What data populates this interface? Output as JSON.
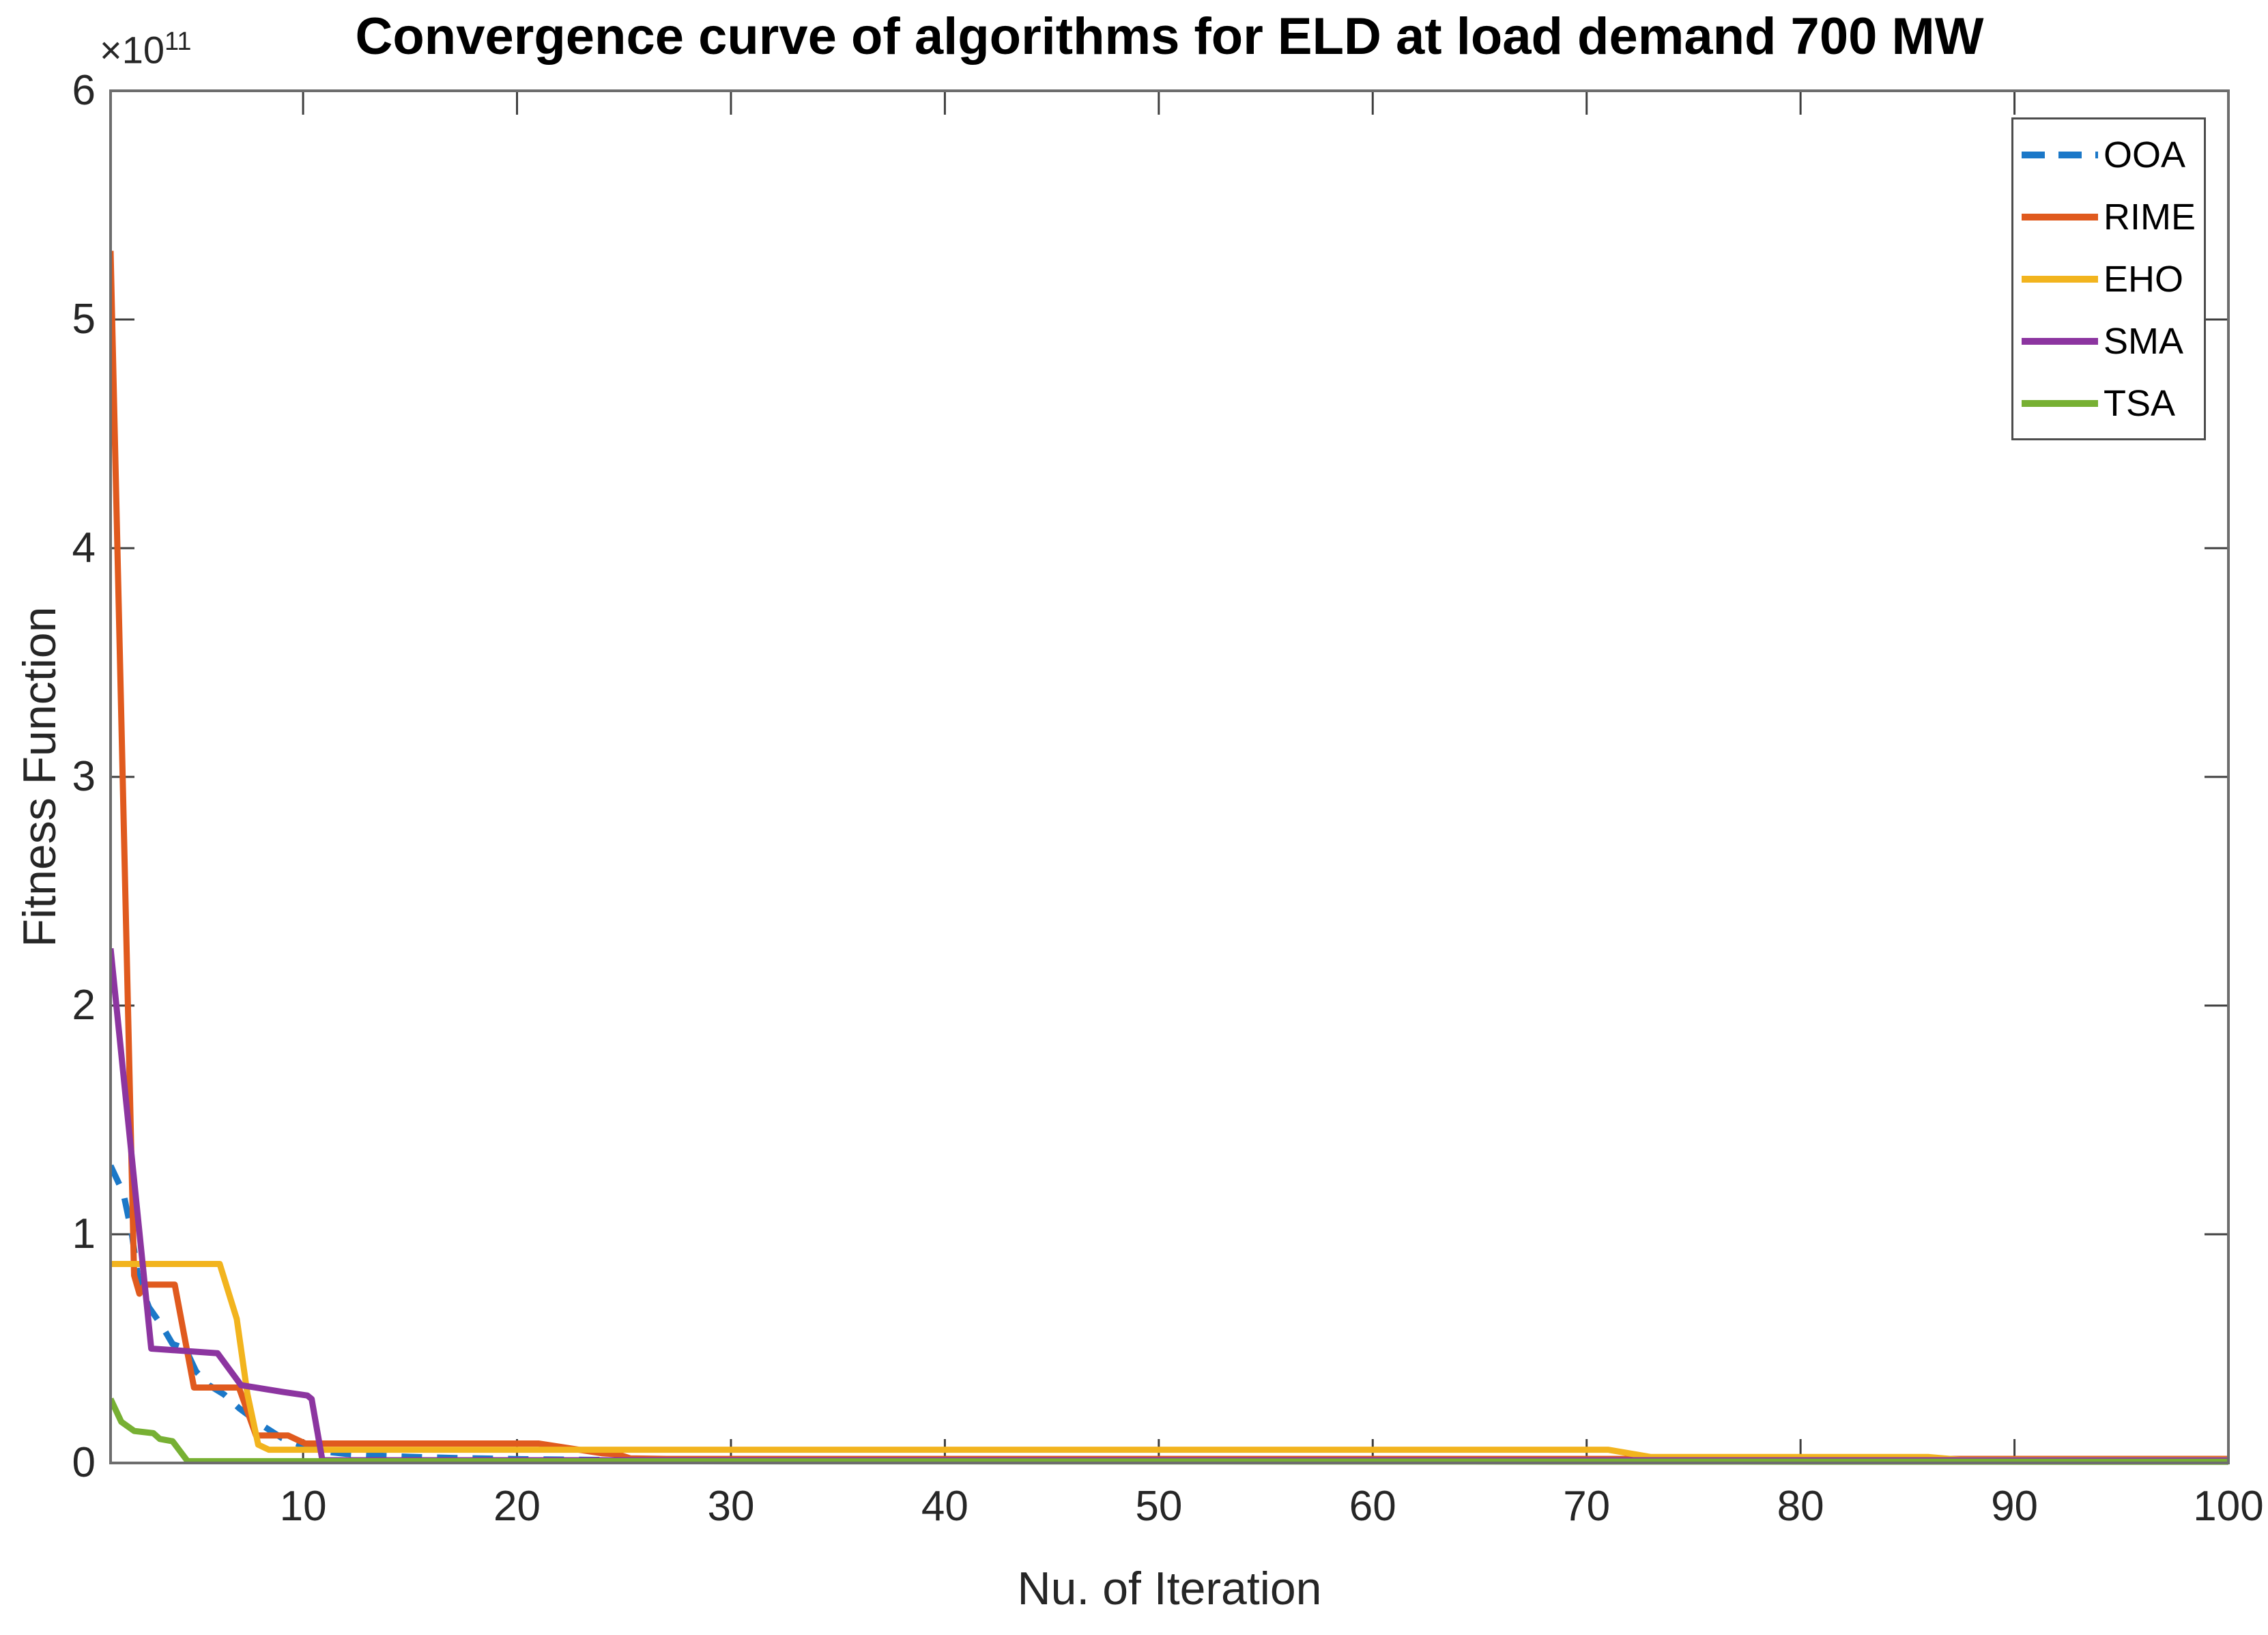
{
  "figure": {
    "title": "Convergence curve of algorithms for ELD at load demand 700 MW",
    "xlabel": "Nu. of Iteration",
    "ylabel": "Fitness Function",
    "y_multiplier_base": "×10",
    "y_multiplier_exponent": "11"
  },
  "colors": {
    "frame": "#6D6D6D",
    "tick": "#3F3F3F",
    "label_text": "#262626",
    "title_text": "#000000",
    "legend_border": "#4D4D4D"
  },
  "chart_data": {
    "type": "line",
    "title": "Convergence curve of algorithms for ELD at load demand 700 MW",
    "xlabel": "Nu. of Iteration",
    "ylabel": "Fitness Function",
    "y_values_unit": "×10^11",
    "xlim": [
      1,
      100
    ],
    "ylim": [
      0,
      6
    ],
    "xticks": [
      10,
      20,
      30,
      40,
      50,
      60,
      70,
      80,
      90,
      100
    ],
    "yticks": [
      0,
      1,
      2,
      3,
      4,
      5,
      6
    ],
    "grid": false,
    "legend_position": "northeast",
    "series": [
      {
        "name": "OOA",
        "color": "#1B78C8",
        "line_style": "dashed",
        "points": [
          [
            1,
            1.3
          ],
          [
            1.6,
            1.18
          ],
          [
            2,
            1.0
          ],
          [
            2.3,
            0.8
          ],
          [
            2.8,
            0.68
          ],
          [
            3.4,
            0.6
          ],
          [
            3.9,
            0.52
          ],
          [
            4.5,
            0.5
          ],
          [
            5,
            0.4
          ],
          [
            5.6,
            0.34
          ],
          [
            6.3,
            0.3
          ],
          [
            7,
            0.24
          ],
          [
            8,
            0.17
          ],
          [
            9,
            0.11
          ],
          [
            10,
            0.075
          ],
          [
            11,
            0.05
          ],
          [
            12,
            0.04
          ],
          [
            13.5,
            0.032
          ],
          [
            15,
            0.027
          ],
          [
            17,
            0.022
          ],
          [
            20,
            0.017
          ],
          [
            24,
            0.013
          ],
          [
            30,
            0.01
          ],
          [
            100,
            0.01
          ]
        ]
      },
      {
        "name": "RIME",
        "color": "#E05A1E",
        "line_style": "solid",
        "points": [
          [
            1,
            5.3
          ],
          [
            2.1,
            0.82
          ],
          [
            2.35,
            0.74
          ],
          [
            2.6,
            0.78
          ],
          [
            4.0,
            0.78
          ],
          [
            4.9,
            0.33
          ],
          [
            7.0,
            0.33
          ],
          [
            7.8,
            0.12
          ],
          [
            9.3,
            0.12
          ],
          [
            10.1,
            0.085
          ],
          [
            21,
            0.085
          ],
          [
            24,
            0.042
          ],
          [
            24.7,
            0.038
          ],
          [
            25.3,
            0.02
          ],
          [
            27,
            0.018
          ],
          [
            100,
            0.018
          ]
        ]
      },
      {
        "name": "EHO",
        "color": "#F2B41E",
        "line_style": "solid",
        "points": [
          [
            1,
            0.87
          ],
          [
            6.1,
            0.87
          ],
          [
            6.9,
            0.63
          ],
          [
            7.4,
            0.3
          ],
          [
            7.9,
            0.08
          ],
          [
            8.4,
            0.058
          ],
          [
            71,
            0.058
          ],
          [
            73,
            0.026
          ],
          [
            86,
            0.026
          ],
          [
            87.5,
            0.014
          ],
          [
            100,
            0.014
          ]
        ]
      },
      {
        "name": "SMA",
        "color": "#8C35A0",
        "line_style": "solid",
        "points": [
          [
            1,
            2.25
          ],
          [
            2.9,
            0.5
          ],
          [
            6.0,
            0.48
          ],
          [
            7.1,
            0.34
          ],
          [
            9.1,
            0.31
          ],
          [
            10.2,
            0.295
          ],
          [
            10.4,
            0.28
          ],
          [
            10.9,
            0.012
          ],
          [
            100,
            0.012
          ]
        ]
      },
      {
        "name": "TSA",
        "color": "#77B033",
        "line_style": "solid",
        "points": [
          [
            1,
            0.28
          ],
          [
            1.5,
            0.18
          ],
          [
            2.1,
            0.14
          ],
          [
            3.0,
            0.13
          ],
          [
            3.3,
            0.105
          ],
          [
            3.9,
            0.095
          ],
          [
            4.6,
            0.008
          ],
          [
            100,
            0.005
          ]
        ]
      }
    ]
  }
}
